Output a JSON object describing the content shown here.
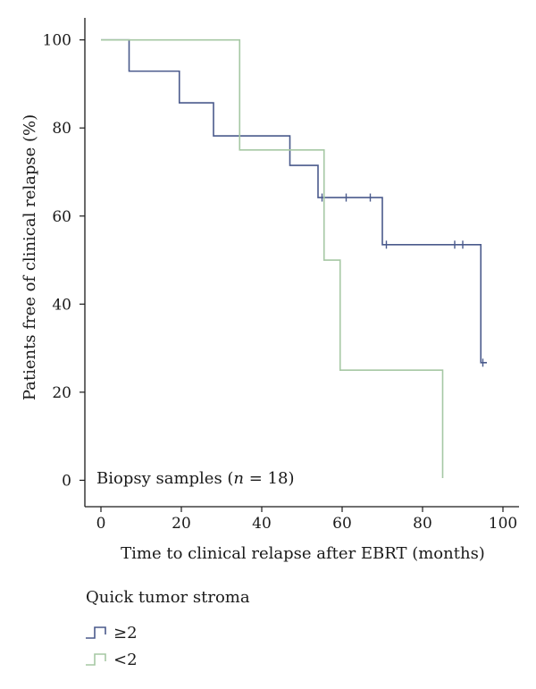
{
  "chart_data": {
    "type": "line",
    "step": "post",
    "xlabel": "Time to clinical relapse after EBRT (months)",
    "ylabel": "Patients free of clinical relapse (%)",
    "xlim": [
      -4,
      104
    ],
    "ylim": [
      -6,
      105
    ],
    "xticks": [
      0,
      20,
      40,
      60,
      80,
      100
    ],
    "yticks": [
      0,
      20,
      40,
      60,
      80,
      100
    ],
    "annotation": {
      "prefix": "Biopsy samples (",
      "italic": "n",
      "suffix": " = 18)"
    },
    "legend": {
      "title": "Quick tumor stroma",
      "placement": "below"
    },
    "series": [
      {
        "name": "≥2",
        "color": "#4a5a8c",
        "steps": [
          [
            0,
            100
          ],
          [
            7,
            92.9
          ],
          [
            19.5,
            85.7
          ],
          [
            28,
            78.2
          ],
          [
            47,
            71.5
          ],
          [
            54,
            64.2
          ],
          [
            70,
            53.5
          ],
          [
            94.5,
            26.7
          ],
          [
            96,
            26.7
          ]
        ],
        "censored": [
          [
            55,
            64.2
          ],
          [
            61,
            64.2
          ],
          [
            67,
            64.2
          ],
          [
            71,
            53.5
          ],
          [
            88,
            53.5
          ],
          [
            90,
            53.5
          ],
          [
            95,
            26.7
          ]
        ]
      },
      {
        "name": "<2",
        "color": "#a6c8a4",
        "steps": [
          [
            0,
            100
          ],
          [
            34.5,
            75
          ],
          [
            55.5,
            50
          ],
          [
            59.5,
            25
          ],
          [
            85,
            0.5
          ]
        ],
        "censored": []
      }
    ]
  }
}
